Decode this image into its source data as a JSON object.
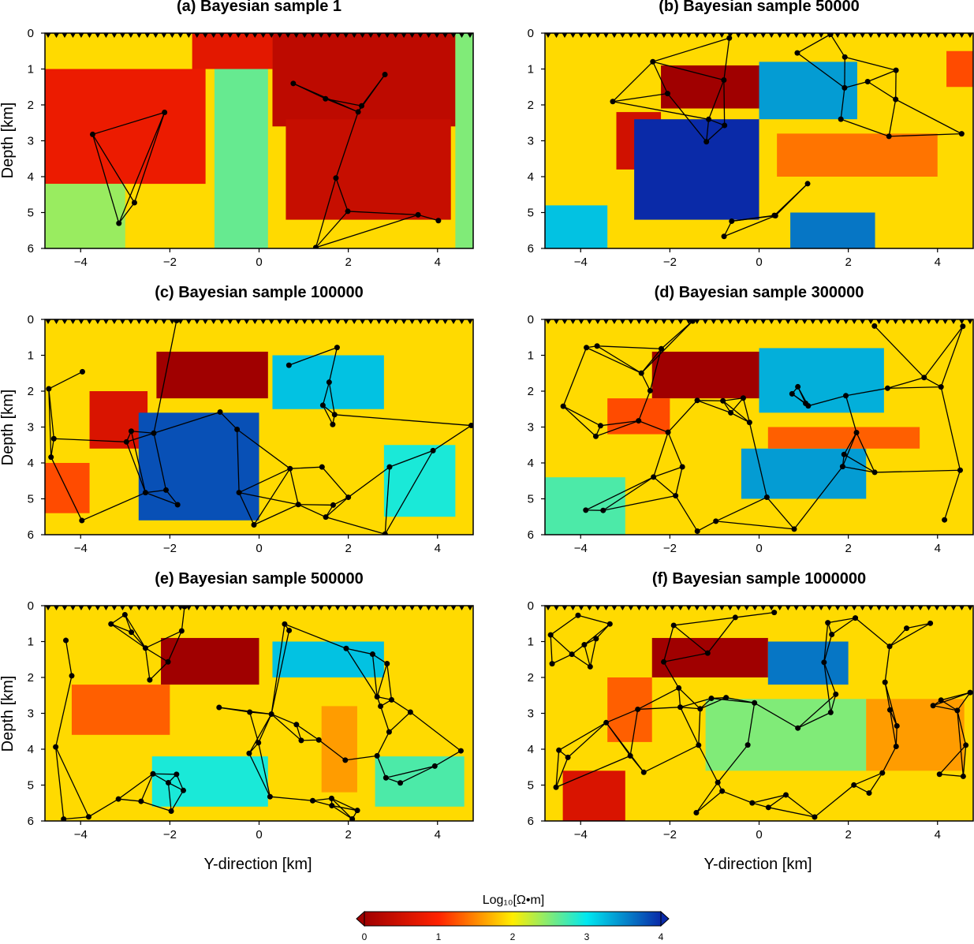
{
  "chart_data": {
    "type": "heatmap",
    "panels": [
      {
        "title": "(a) Bayesian sample 1",
        "blocks": [
          {
            "x": [
              0.3,
              4.4
            ],
            "y": [
              0.0,
              2.6
            ],
            "v": 0.3
          },
          {
            "x": [
              -4.8,
              -1.2
            ],
            "y": [
              1.0,
              4.2
            ],
            "v": 0.8
          },
          {
            "x": [
              -1.5,
              0.3
            ],
            "y": [
              0.0,
              1.0
            ],
            "v": 0.7
          },
          {
            "x": [
              0.6,
              4.3
            ],
            "y": [
              2.4,
              5.2
            ],
            "v": 0.4
          },
          {
            "x": [
              4.4,
              4.8
            ],
            "y": [
              0.0,
              6.0
            ],
            "v": 2.5
          },
          {
            "x": [
              -1.0,
              0.2
            ],
            "y": [
              1.0,
              6.0
            ],
            "v": 2.6
          },
          {
            "x": [
              -4.8,
              -3.0
            ],
            "y": [
              4.2,
              6.0
            ],
            "v": 2.4
          }
        ]
      },
      {
        "title": "(b) Bayesian sample 50000",
        "blocks": [
          {
            "x": [
              -2.2,
              0.2
            ],
            "y": [
              0.9,
              2.1
            ],
            "v": 0.0
          },
          {
            "x": [
              -3.2,
              -2.2
            ],
            "y": [
              2.2,
              3.8
            ],
            "v": 0.5
          },
          {
            "x": [
              -2.8,
              0.0
            ],
            "y": [
              2.4,
              5.2
            ],
            "v": 4.0
          },
          {
            "x": [
              0.0,
              2.2
            ],
            "y": [
              0.8,
              2.4
            ],
            "v": 3.4
          },
          {
            "x": [
              0.7,
              2.6
            ],
            "y": [
              5.0,
              6.0
            ],
            "v": 3.6
          },
          {
            "x": [
              -4.8,
              -3.4
            ],
            "y": [
              4.8,
              6.0
            ],
            "v": 3.2
          },
          {
            "x": [
              0.4,
              4.0
            ],
            "y": [
              2.8,
              4.0
            ],
            "v": 1.4
          },
          {
            "x": [
              4.2,
              4.8
            ],
            "y": [
              0.5,
              1.5
            ],
            "v": 1.2
          }
        ]
      },
      {
        "title": "(c) Bayesian sample 100000",
        "blocks": [
          {
            "x": [
              -2.3,
              0.2
            ],
            "y": [
              0.9,
              2.2
            ],
            "v": 0.0
          },
          {
            "x": [
              -3.8,
              -2.5
            ],
            "y": [
              2.0,
              3.6
            ],
            "v": 0.6
          },
          {
            "x": [
              -2.7,
              0.0
            ],
            "y": [
              2.6,
              5.6
            ],
            "v": 3.8
          },
          {
            "x": [
              0.3,
              2.8
            ],
            "y": [
              1.0,
              2.5
            ],
            "v": 3.2
          },
          {
            "x": [
              -4.8,
              -3.8
            ],
            "y": [
              4.0,
              5.4
            ],
            "v": 1.2
          },
          {
            "x": [
              2.8,
              4.4
            ],
            "y": [
              3.5,
              5.5
            ],
            "v": 2.9
          }
        ]
      },
      {
        "title": "(d) Bayesian sample 300000",
        "blocks": [
          {
            "x": [
              -2.4,
              0.1
            ],
            "y": [
              0.9,
              2.2
            ],
            "v": 0.0
          },
          {
            "x": [
              0.0,
              2.8
            ],
            "y": [
              0.8,
              2.6
            ],
            "v": 3.3
          },
          {
            "x": [
              -0.4,
              2.4
            ],
            "y": [
              3.6,
              5.0
            ],
            "v": 3.4
          },
          {
            "x": [
              -3.4,
              -2.0
            ],
            "y": [
              2.2,
              3.2
            ],
            "v": 1.2
          },
          {
            "x": [
              0.2,
              3.6
            ],
            "y": [
              3.0,
              3.6
            ],
            "v": 1.3
          },
          {
            "x": [
              -4.8,
              -3.0
            ],
            "y": [
              4.4,
              6.0
            ],
            "v": 2.7
          }
        ]
      },
      {
        "title": "(e) Bayesian sample 500000",
        "blocks": [
          {
            "x": [
              -2.2,
              0.0
            ],
            "y": [
              0.9,
              2.2
            ],
            "v": 0.0
          },
          {
            "x": [
              0.3,
              2.8
            ],
            "y": [
              1.0,
              2.0
            ],
            "v": 3.2
          },
          {
            "x": [
              -4.2,
              -2.0
            ],
            "y": [
              2.2,
              3.6
            ],
            "v": 1.3
          },
          {
            "x": [
              -2.4,
              0.2
            ],
            "y": [
              4.2,
              5.6
            ],
            "v": 2.9
          },
          {
            "x": [
              2.6,
              4.6
            ],
            "y": [
              4.2,
              5.6
            ],
            "v": 2.7
          },
          {
            "x": [
              1.4,
              2.2
            ],
            "y": [
              2.8,
              5.2
            ],
            "v": 1.6
          }
        ]
      },
      {
        "title": "(f) Bayesian sample 1000000",
        "blocks": [
          {
            "x": [
              -2.4,
              0.2
            ],
            "y": [
              0.9,
              2.0
            ],
            "v": 0.0
          },
          {
            "x": [
              0.2,
              2.0
            ],
            "y": [
              1.0,
              2.2
            ],
            "v": 3.6
          },
          {
            "x": [
              -4.4,
              -3.0
            ],
            "y": [
              4.6,
              6.0
            ],
            "v": 0.6
          },
          {
            "x": [
              -3.4,
              -2.4
            ],
            "y": [
              2.0,
              3.8
            ],
            "v": 1.3
          },
          {
            "x": [
              -1.2,
              2.4
            ],
            "y": [
              2.6,
              4.6
            ],
            "v": 2.5
          },
          {
            "x": [
              2.4,
              4.6
            ],
            "y": [
              2.6,
              4.6
            ],
            "v": 1.6
          }
        ]
      }
    ],
    "background_value": 1.9,
    "xlim": [
      -4.8,
      4.8
    ],
    "ylim": [
      6,
      0
    ],
    "xticks": [
      "−4",
      "−2",
      "0",
      "2",
      "4"
    ],
    "xtick_values": [
      -4,
      -2,
      0,
      2,
      4
    ],
    "yticks": [
      "0",
      "1",
      "2",
      "3",
      "4",
      "5",
      "6"
    ],
    "ylabel": "Depth [km]",
    "xlabel": "Y-direction [km]",
    "colorbar": {
      "label": "Log₁₀[Ω•m]",
      "range": [
        0,
        4
      ],
      "ticks": [
        "0",
        "1",
        "2",
        "3",
        "4"
      ],
      "colors": [
        "#a00000",
        "#ff2200",
        "#ffee00",
        "#00e8f0",
        "#0a2aa8"
      ]
    }
  }
}
